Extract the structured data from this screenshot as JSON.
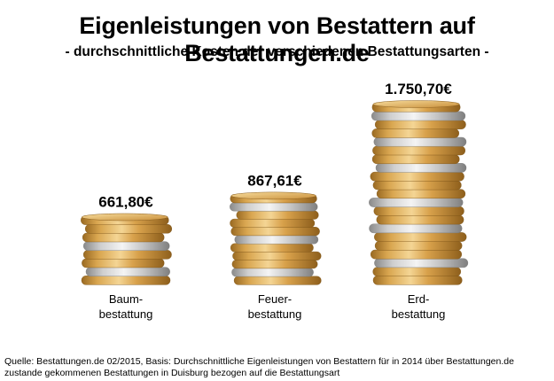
{
  "title": "Eigenleistungen von Bestattern auf Bestattungen.de",
  "subtitle": "- durchschnittliche Kosten der verschiedenen Bestattungsarten -",
  "chart_data": {
    "type": "bar",
    "categories": [
      "Baum-\nbestattung",
      "Feuer-\nbestattung",
      "Erd-\nbestattung"
    ],
    "values": [
      661.8,
      867.61,
      1750.7
    ],
    "value_labels": [
      "661,80€",
      "867,61€",
      "1.750,70€"
    ],
    "title": "Eigenleistungen von Bestattern auf Bestattungen.de",
    "subtitle": "- durchschnittliche Kosten der verschiedenen Bestattungsarten -",
    "xlabel": "",
    "ylabel": "",
    "grid": false,
    "legend": "none",
    "bar_style": "coin-stack"
  },
  "source": "Quelle: Bestattungen.de 02/2015, Basis: Durchschnittliche Eigenleistungen von Bestattern für in 2014 über Bestattungen.de zustande gekommenen Bestattungen in Duisburg bezogen auf die Bestattungsart",
  "colors": {
    "gold": "#d4a14a",
    "gold_light": "#f0d08a",
    "gold_dark": "#9a6a22",
    "silver": "#c9c9c9",
    "silver_light": "#eeeeee",
    "silver_dark": "#8a8a8a"
  }
}
